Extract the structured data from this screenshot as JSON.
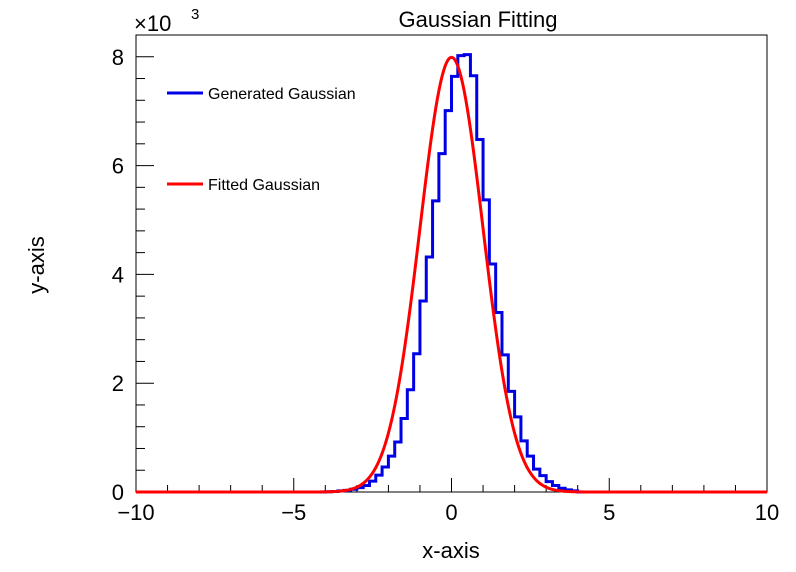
{
  "chart_data": {
    "type": "line",
    "title": "Gaussian Fitting",
    "xlabel": "x-axis",
    "ylabel": "y-axis",
    "xlim": [
      -10,
      10
    ],
    "ylim": [
      0,
      8400
    ],
    "y_multiplier": {
      "base": "×10",
      "exponent": "3"
    },
    "x_ticks": [
      -10,
      -5,
      0,
      5,
      10
    ],
    "y_ticks": [
      0,
      2,
      4,
      6,
      8
    ],
    "x_tick_labels": [
      "−10",
      "−5",
      "0",
      "5",
      "10"
    ],
    "y_tick_labels": [
      "0",
      "2",
      "4",
      "6",
      "8"
    ],
    "grid": false,
    "legend_position": "top-left",
    "series": [
      {
        "name": "Generated Gaussian",
        "style": "histogram",
        "color": "#0000e6",
        "bin_width": 0.2,
        "bin_edges_start": -4.0,
        "values": [
          5,
          10,
          20,
          30,
          50,
          80,
          120,
          200,
          310,
          460,
          660,
          920,
          1350,
          1880,
          2540,
          3510,
          4320,
          5350,
          6220,
          7010,
          7640,
          8020,
          8040,
          7650,
          6480,
          5370,
          4190,
          3300,
          2520,
          1850,
          1380,
          940,
          660,
          420,
          300,
          190,
          120,
          70,
          40,
          20
        ]
      },
      {
        "name": "Fitted Gaussian",
        "style": "curve",
        "color": "#ff0000",
        "amplitude": 7990,
        "mean": 0.0,
        "sigma": 1.0
      }
    ]
  }
}
